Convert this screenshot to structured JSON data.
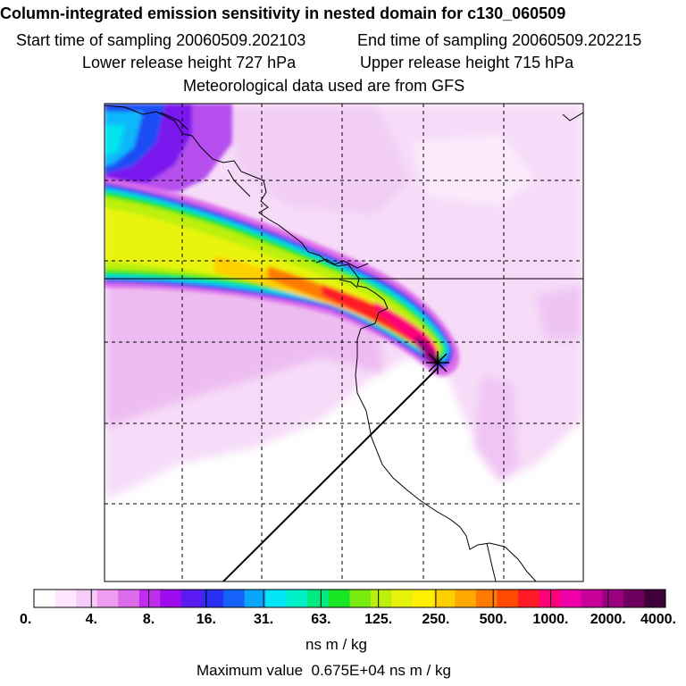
{
  "header": {
    "title": "Column-integrated emission sensitivity in nested domain for c130_060509",
    "start_label": "Start time of sampling 20060509.202103",
    "end_label": "End time of sampling 20060509.202215",
    "lower_label": "Lower release height  727 hPa",
    "upper_label": "Upper release height  715 hPa",
    "met_label": "Meteorological data used are from GFS"
  },
  "chart_data": {
    "type": "heatmap",
    "title": "Column-integrated emission sensitivity in nested domain for c130_060509",
    "colorbar": {
      "tick_labels": [
        "0.",
        "4.",
        "8.",
        "16.",
        "31.",
        "63.",
        "125.",
        "250.",
        "500.",
        "1000.",
        "2000.",
        "4000."
      ],
      "tick_values": [
        0,
        4,
        8,
        16,
        31,
        63,
        125,
        250,
        500,
        1000,
        2000,
        4000
      ],
      "colors": [
        "#ffffff",
        "#ffe8ff",
        "#f8ccf8",
        "#ee9bf0",
        "#dd6cea",
        "#c12cee",
        "#9e0cee",
        "#5a1af0",
        "#2a30f3",
        "#1562f8",
        "#0aa6fb",
        "#00e6f6",
        "#00f0c8",
        "#00ea7e",
        "#18e624",
        "#78ec10",
        "#bcf00a",
        "#e6f20a",
        "#fff000",
        "#ffd000",
        "#ffa800",
        "#ff7a00",
        "#ff4a00",
        "#ff1a28",
        "#ff0078",
        "#f000a8",
        "#c8009a",
        "#9a0080",
        "#6e0060",
        "#3e0038"
      ],
      "units": "ns m / kg"
    },
    "max_value": {
      "label": "Maximum value",
      "value": "0.675E+04",
      "units": "ns m / kg"
    }
  }
}
